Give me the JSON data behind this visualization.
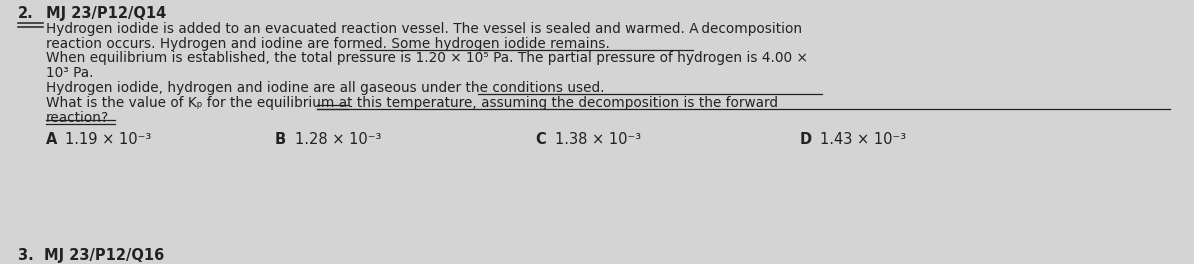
{
  "bg_color": "#d4d4d4",
  "question_number": "2.",
  "question_id": "MJ 23/P12/Q14",
  "next_question": "3.  MJ 23/P12/Q16",
  "body_lines": [
    "Hydrogen iodide is added to an evacuated reaction vessel. The vessel is sealed and warmed. A decomposition",
    "reaction occurs. Hydrogen and iodine are formed. Some hydrogen iodide remains.",
    "When equilibrium is established, the total pressure is 1.20 × 10⁵ Pa. The partial pressure of hydrogen is 4.00 ×",
    "10³ Pa.",
    "Hydrogen iodide, hydrogen and iodine are all gaseous under the conditions used.",
    "What is the value of Kₚ for the equilibrium at this temperature, assuming the decomposition is the forward",
    "reaction?"
  ],
  "options": [
    {
      "letter": "A",
      "value": "1.19 × 10⁻³"
    },
    {
      "letter": "B",
      "value": "1.28 × 10⁻³"
    },
    {
      "letter": "C",
      "value": "1.38 × 10⁻³"
    },
    {
      "letter": "D",
      "value": "1.43 × 10⁻³"
    }
  ],
  "font_size_header": 10.5,
  "font_size_body": 9.8,
  "font_size_options": 10.5,
  "text_color": "#222222",
  "font_family": "DejaVu Sans"
}
